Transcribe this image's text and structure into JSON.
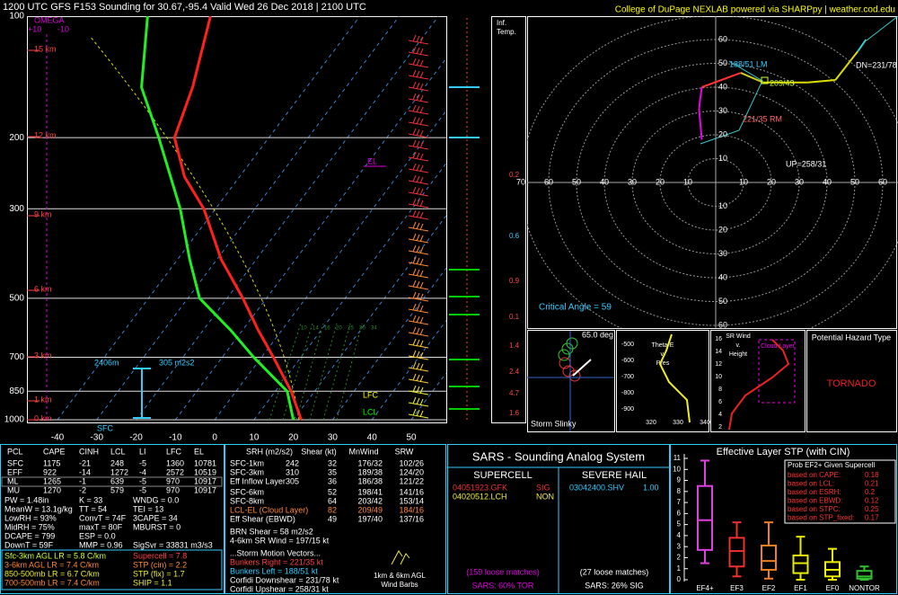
{
  "header": {
    "title": "1200 UTC GFS F153 Sounding for 30.67,-95.4 Valid  Wed 26 Dec 2018 | 2100 UTC",
    "credit": "College of DuPage NEXLAB powered via SHARPpy | weather.cod.edu"
  },
  "skewt": {
    "pressure_ticks": [
      100,
      200,
      300,
      500,
      700,
      850,
      1000
    ],
    "temperature_ticks": [
      -40,
      -30,
      -20,
      -10,
      0,
      10,
      20,
      30,
      40,
      50
    ],
    "temperature": {
      "color": "#ff2020",
      "pressure": [
        1000,
        850,
        700,
        600,
        500,
        400,
        300,
        250,
        200,
        150,
        100
      ],
      "values": [
        22,
        14,
        3,
        -6,
        -16,
        -29,
        -43,
        -54,
        -64,
        -69,
        -78
      ]
    },
    "dewpoint": {
      "color": "#22ee22",
      "pressure": [
        1000,
        850,
        700,
        600,
        500,
        400,
        300,
        200,
        150,
        100
      ],
      "values": [
        20,
        13,
        -2,
        -13,
        -27,
        -37,
        -49,
        -68,
        -82,
        -94
      ]
    },
    "height_labels": [
      "15 km",
      "12 km",
      "9 km",
      "6 km",
      "3 km",
      "1 km",
      "0 km"
    ],
    "omega_label": "OMEGA",
    "omega_ticks": [
      "+10",
      "-10"
    ],
    "el": "EL",
    "lfc": "LFC",
    "lcl": "LCL",
    "sfc": "SFC",
    "eff_layer_depth": "2406m",
    "eff_srh": "305 m2s2",
    "mixing_ratio_labels": [
      "10",
      "14",
      "16",
      "20",
      "25",
      "30",
      "34"
    ]
  },
  "inferred_temp": {
    "title": "Inf.",
    "subtitle": "Temp.",
    "labels": [
      "0.2",
      "0.6",
      "0.9",
      "0.1",
      "1.4",
      "2.4",
      "4.7",
      "1.6"
    ]
  },
  "hodograph": {
    "ticks": [
      10,
      20,
      30,
      40,
      50,
      60,
      70
    ],
    "u": [
      -5,
      -6,
      -5,
      9,
      17,
      33,
      43,
      51,
      54
    ],
    "v": [
      18,
      31,
      40,
      46,
      42,
      42,
      43,
      55,
      60
    ],
    "lm": "188/51 LM",
    "mean": "209/43",
    "rm": "221/35 RM",
    "dn": "DN=231/78",
    "up": "UP=258/31",
    "critical_angle": "Critical Angle = 59"
  },
  "storm_slinky": {
    "angle": "65.0 deg",
    "title": "Storm Slinky"
  },
  "theta_e": {
    "title": [
      "Theta-E",
      "v.",
      "Pres"
    ],
    "pressure_labels": [
      "-500",
      "-600",
      "-700",
      "-800",
      "-900"
    ],
    "theta_labels": [
      "320",
      "330",
      "340"
    ]
  },
  "sr_wind": {
    "title": [
      "SR Wind",
      "v.",
      "Height"
    ],
    "height_labels": [
      "16",
      "14",
      "12",
      "10",
      "8",
      "6",
      "4",
      "2"
    ],
    "layer": "Cloud Layer"
  },
  "hazard": {
    "title": "Potential Hazard Type",
    "type": "TORNADO"
  },
  "parcels": {
    "header": [
      "PCL",
      "CAPE",
      "CINH",
      "LCL",
      "LI",
      "LFC",
      "EL"
    ],
    "rows": [
      [
        "SFC",
        1175,
        -21,
        248,
        -5,
        1360,
        10781
      ],
      [
        "EFF",
        922,
        -14,
        1272,
        -4,
        2572,
        10519
      ],
      [
        "ML",
        1265,
        -1,
        639,
        -5,
        970,
        10917
      ],
      [
        "MU",
        1270,
        -2,
        579,
        -5,
        970,
        10917
      ]
    ]
  },
  "indices": [
    [
      "PW = 1.48in",
      "K = 33",
      "WNDG = 0.0"
    ],
    [
      "MeanW = 13.1g/kg",
      "TT = 54",
      "TEI = 13"
    ],
    [
      "LowRH = 93%",
      "ConvT = 74F",
      "3CAPE = 34"
    ],
    [
      "MidRH = 75%",
      "maxT = 80F",
      "MBURST = 0"
    ],
    [
      "DCAPE = 799",
      "ESP = 0.0"
    ],
    [
      "DownT = 59F",
      "MMP = 0.96",
      "SigSvr = 33831 m3/s3"
    ]
  ],
  "lapse_rates": [
    "Sfc-3km AGL LR = 5.8 C/km",
    "3-6km AGL LR = 7.4 C/km",
    "850-500mb LR = 6.7 C/km",
    "700-500mb LR = 7.4 C/km"
  ],
  "composites": [
    "Supercell = 7.8",
    "STP (cin) = 2.2",
    "STP (fix) = 1.7",
    "SHIP = 1.1"
  ],
  "kinematics": {
    "header": [
      "SRH (m2/s2)",
      "Shear (kt)",
      "MnWind",
      "SRW"
    ],
    "rows": [
      {
        "layer": "SFC-1km",
        "srh": 242,
        "shear": 32,
        "mnwind": "176/32",
        "srw": "102/26"
      },
      {
        "layer": "SFC-3km",
        "srh": 310,
        "shear": 35,
        "mnwind": "189/38",
        "srw": "124/20"
      },
      {
        "layer": "Eff Inflow Layer",
        "srh": 305,
        "shear": 36,
        "mnwind": "186/38",
        "srw": "121/22"
      },
      {
        "layer": "SFC-6km",
        "shear": 52,
        "mnwind": "198/41",
        "srw": "141/16"
      },
      {
        "layer": "SFC-8km",
        "shear": 64,
        "mnwind": "203/42",
        "srw": "153/14"
      },
      {
        "layer": "LCL-EL (Cloud Layer)",
        "shear": 82,
        "mnwind": "209/49",
        "srw": "184/16"
      },
      {
        "layer": "Eff Shear (EBWD)",
        "shear": 49,
        "mnwind": "197/40",
        "srw": "137/16"
      }
    ],
    "brn": "BRN Shear = 58 m2/s2",
    "sr_wind_4_6": "4-6km SR Wind = 197/15 kt",
    "storm_motion_title": "...Storm Motion Vectors...",
    "storm_motion": [
      "Bunkers Right = 221/35 kt",
      "Bunkers Left = 188/51 kt",
      "Corfidi Downshear = 231/78 kt",
      "Corfidi Upshear = 258/31 kt"
    ],
    "barbs_label": [
      "1km & 6km AGL",
      "Wind Barbs"
    ]
  },
  "sars": {
    "title": "SARS - Sounding Analog System",
    "supercell": {
      "title": "SUPERCELL",
      "matches": [
        {
          "id": "04051923.GFK",
          "type": "SIG"
        },
        {
          "id": "04020512.LCH",
          "type": "NON"
        }
      ],
      "loose": "(159 loose matches)",
      "summary": "SARS: 60% TOR"
    },
    "hail": {
      "title": "SEVERE HAIL",
      "matches": [
        {
          "id": "03042400.SHV",
          "size": "1.00"
        }
      ],
      "loose": "(27 loose matches)",
      "summary": "SARS: 26% SIG"
    }
  },
  "stp": {
    "type": "box",
    "title": "Effective Layer STP (with CIN)",
    "yticks": [
      0,
      1,
      2,
      3,
      4,
      5,
      6,
      7,
      8,
      9,
      10,
      11
    ],
    "categories": [
      "EF4+",
      "EF3",
      "EF2",
      "EF1",
      "EF0",
      "NONTOR"
    ],
    "colors": [
      "#e040e0",
      "#ee3030",
      "#f08020",
      "#e8e800",
      "#f0f000",
      "#30c030"
    ],
    "low": [
      1.5,
      0.3,
      0.1,
      0,
      0,
      0
    ],
    "q1": [
      2.7,
      1.2,
      0.9,
      0.6,
      0.3,
      0.1
    ],
    "median": [
      5.4,
      2.6,
      1.7,
      1.5,
      0.9,
      0.3
    ],
    "q3": [
      8.5,
      3.8,
      3.1,
      2.2,
      1.6,
      0.8
    ],
    "high": [
      10.8,
      5.2,
      5.2,
      3.9,
      2.8,
      1.2
    ],
    "prob_title": "Prob EF2+ Given Supercell",
    "prob": [
      {
        "label": "based on CAPE:",
        "value": 0.18
      },
      {
        "label": "based on LCL:",
        "value": 0.21
      },
      {
        "label": "based on ESRH:",
        "value": 0.2
      },
      {
        "label": "based on EBWD:",
        "value": 0.12
      },
      {
        "label": "based on STPC:",
        "value": 0.25
      },
      {
        "label": "based on STP_fixed:",
        "value": 0.17
      }
    ]
  }
}
